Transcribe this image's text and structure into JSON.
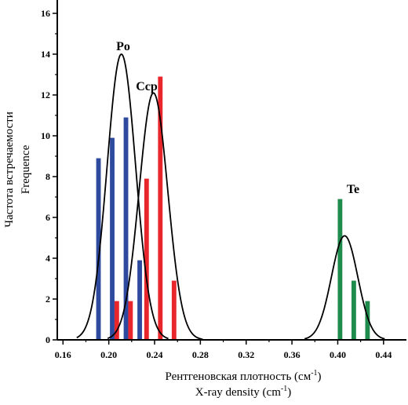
{
  "chart_data": {
    "type": "bar",
    "xlabel_ru": "Рентгеновская плотность (см",
    "xlabel_ru_sup": "-1",
    "xlabel_ru_end": ")",
    "xlabel_en": "X-ray density (cm",
    "xlabel_en_sup": "-1",
    "xlabel_en_end": ")",
    "ylabel_ru": "Частота встречаемости",
    "ylabel_en": "Frequence",
    "xlim": [
      0.155,
      0.46
    ],
    "ylim": [
      0,
      17
    ],
    "x_ticks": [
      "0.16",
      "0.20",
      "0.24",
      "0.28",
      "0.32",
      "0.36",
      "0.40",
      "0.44"
    ],
    "y_ticks": [
      "0",
      "2",
      "4",
      "6",
      "8",
      "10",
      "12",
      "14",
      "16"
    ],
    "bar_width": 0.004,
    "series": [
      {
        "name": "Po",
        "color": "#2e4a9e",
        "bars": [
          {
            "x": 0.191,
            "value": 8.9
          },
          {
            "x": 0.203,
            "value": 9.9
          },
          {
            "x": 0.215,
            "value": 10.9
          },
          {
            "x": 0.227,
            "value": 3.9
          }
        ],
        "curve": {
          "mean": 0.211,
          "sd": 0.0125,
          "peak": 14.0,
          "from": 0.172,
          "to": 0.252
        }
      },
      {
        "name": "Ccp",
        "color": "#e8262b",
        "bars": [
          {
            "x": 0.207,
            "value": 1.9
          },
          {
            "x": 0.219,
            "value": 1.9
          },
          {
            "x": 0.233,
            "value": 7.9
          },
          {
            "x": 0.245,
            "value": 12.9
          },
          {
            "x": 0.257,
            "value": 2.9
          }
        ],
        "curve": {
          "mean": 0.239,
          "sd": 0.0125,
          "peak": 12.1,
          "from": 0.199,
          "to": 0.282
        }
      },
      {
        "name": "Te",
        "color": "#1f8b4c",
        "bars": [
          {
            "x": 0.402,
            "value": 6.9
          },
          {
            "x": 0.414,
            "value": 2.9
          },
          {
            "x": 0.426,
            "value": 1.9
          }
        ],
        "curve": {
          "mean": 0.406,
          "sd": 0.0115,
          "peak": 5.1,
          "from": 0.371,
          "to": 0.441
        }
      }
    ]
  }
}
